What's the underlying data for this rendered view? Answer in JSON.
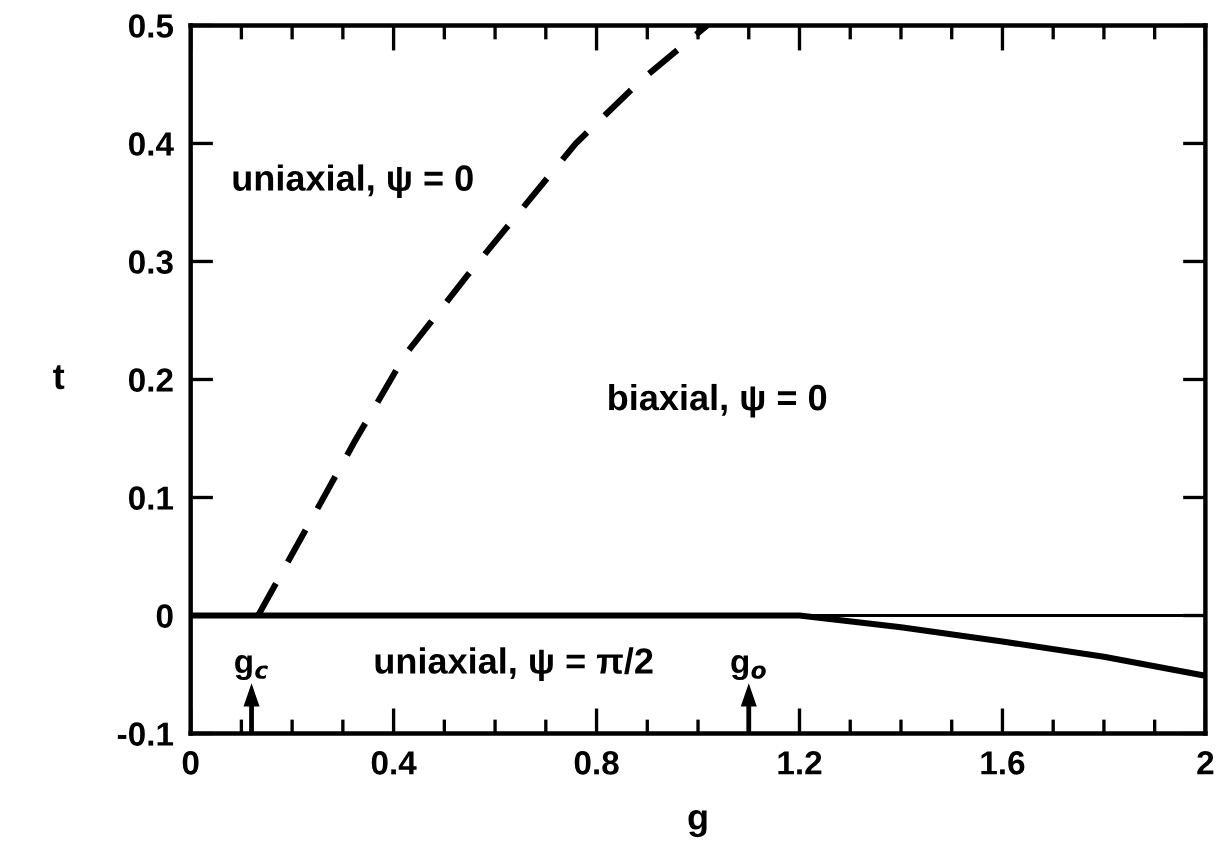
{
  "chart_data": {
    "type": "line",
    "xlabel": "g",
    "ylabel": "t",
    "xlim": [
      0,
      2
    ],
    "ylim": [
      -0.1,
      0.5
    ],
    "xticks": [
      0,
      {
        "value": 0.1,
        "label": null
      },
      {
        "value": 0.2,
        "label": null
      },
      {
        "value": 0.3,
        "label": null
      },
      0.4,
      {
        "value": 0.5,
        "label": null
      },
      {
        "value": 0.6,
        "label": null
      },
      {
        "value": 0.7,
        "label": null
      },
      0.8,
      {
        "value": 0.9,
        "label": null
      },
      {
        "value": 1.0,
        "label": null
      },
      {
        "value": 1.1,
        "label": null
      },
      1.2,
      {
        "value": 1.3,
        "label": null
      },
      {
        "value": 1.4,
        "label": null
      },
      {
        "value": 1.5,
        "label": null
      },
      1.6,
      {
        "value": 1.7,
        "label": null
      },
      {
        "value": 1.8,
        "label": null
      },
      {
        "value": 1.9,
        "label": null
      },
      2
    ],
    "yticks": [
      -0.1,
      0,
      0.1,
      0.2,
      0.3,
      0.4,
      0.5
    ],
    "grid": false,
    "marker": "none",
    "series": [
      {
        "color": "#000000",
        "line_style": "dashed",
        "x": [
          0.133,
          0.324,
          0.423,
          0.545,
          0.652,
          0.759,
          0.889,
          1.018
        ],
        "values": [
          0,
          0.148,
          0.221,
          0.288,
          0.344,
          0.4,
          0.454,
          0.5
        ]
      },
      {
        "color": "#000000",
        "line_style": "solid",
        "x": [
          0,
          0.4,
          0.8,
          1.2,
          1.4,
          1.6,
          1.8,
          2.0
        ],
        "values": [
          0,
          0,
          0,
          0,
          -0.01,
          -0.022,
          -0.035,
          -0.051
        ]
      }
    ],
    "ref_lines": [
      {
        "axis": "y",
        "value": 0,
        "color": "#000000"
      }
    ],
    "annotations": [
      "uniaxial, ψ = 0",
      "biaxial, ψ = 0",
      "uniaxial, ψ = π/2",
      "g$_{c}$",
      "g$_{o}$"
    ]
  }
}
